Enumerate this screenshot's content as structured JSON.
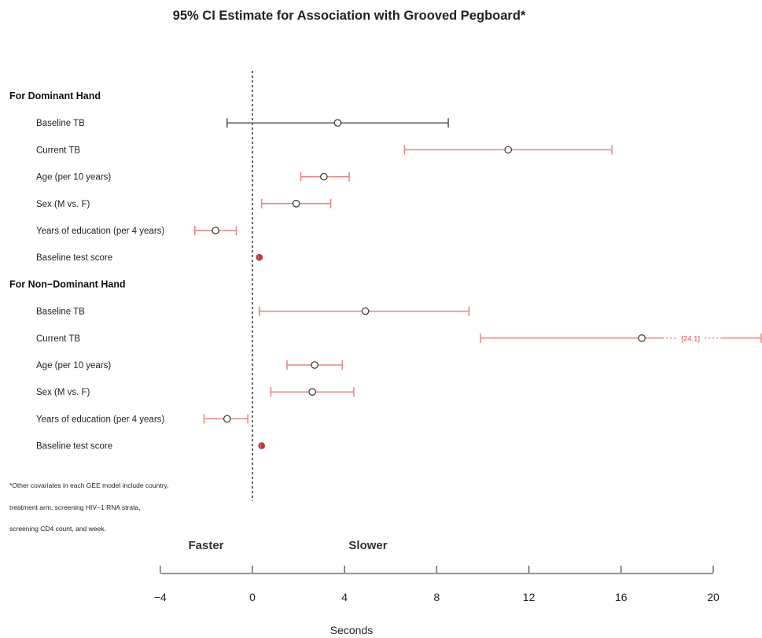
{
  "chart_data": {
    "type": "forest",
    "title": "95% CI Estimate for Association with Grooved Pegboard*",
    "xlabel": "Seconds",
    "xlim": [
      -4,
      22
    ],
    "x_ticks": [
      -4,
      0,
      4,
      8,
      12,
      16,
      20
    ],
    "reference_line": 0,
    "direction_labels": {
      "left": "Faster",
      "right": "Slower"
    },
    "colors": {
      "significant": "#e8837f",
      "not_significant": "#555555",
      "point_outline": "#333333",
      "point_small_sig": "#b03a35",
      "reference_line": "#444444",
      "annotation": "#d9534f"
    },
    "groups": [
      {
        "name": "For Dominant Hand",
        "rows": [
          {
            "label": "Baseline TB",
            "estimate": 3.7,
            "lower": -1.1,
            "upper": 8.5,
            "significant": false
          },
          {
            "label": "Current TB",
            "estimate": 11.1,
            "lower": 6.6,
            "upper": 15.6,
            "significant": true
          },
          {
            "label": "Age (per 10 years)",
            "estimate": 3.1,
            "lower": 2.1,
            "upper": 4.2,
            "significant": true
          },
          {
            "label": "Sex (M vs. F)",
            "estimate": 1.9,
            "lower": 0.4,
            "upper": 3.4,
            "significant": true
          },
          {
            "label": "Years of education (per 4 years)",
            "estimate": -1.6,
            "lower": -2.5,
            "upper": -0.7,
            "significant": true
          },
          {
            "label": "Baseline test score",
            "estimate": 0.3,
            "lower": 0.25,
            "upper": 0.35,
            "significant": true
          }
        ]
      },
      {
        "name": "For Non−Dominant Hand",
        "rows": [
          {
            "label": "Baseline TB",
            "estimate": 4.9,
            "lower": 0.3,
            "upper": 9.4,
            "significant": true
          },
          {
            "label": "Current TB",
            "estimate": 16.9,
            "lower": 9.9,
            "upper": 24.1,
            "significant": true,
            "upper_truncated": true,
            "upper_annotation": "[24.1]"
          },
          {
            "label": "Age (per 10 years)",
            "estimate": 2.7,
            "lower": 1.5,
            "upper": 3.9,
            "significant": true
          },
          {
            "label": "Sex (M vs. F)",
            "estimate": 2.6,
            "lower": 0.8,
            "upper": 4.4,
            "significant": true
          },
          {
            "label": "Years of education (per 4 years)",
            "estimate": -1.1,
            "lower": -2.1,
            "upper": -0.2,
            "significant": true
          },
          {
            "label": "Baseline test score",
            "estimate": 0.4,
            "lower": 0.35,
            "upper": 0.45,
            "significant": true
          }
        ]
      }
    ],
    "footnote": [
      "*Other covariates in each GEE model include country,",
      "treatment arm, screening HIV−1 RNA strata,",
      "screening CD4 count, and week."
    ]
  }
}
